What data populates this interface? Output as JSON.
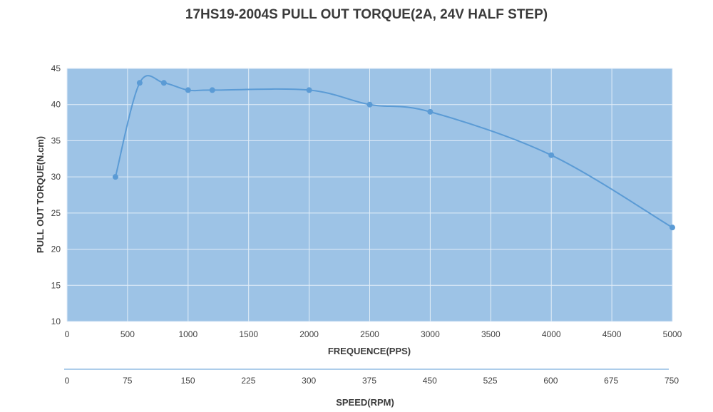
{
  "chart_data": {
    "type": "line",
    "title": "17HS19-2004S PULL OUT TORQUE(2A, 24V HALF STEP)",
    "xlabel": "FREQUENCE(PPS)",
    "ylabel": "PULL OUT TORQUE(N.cm)",
    "xlim": [
      0,
      5000
    ],
    "ylim": [
      10,
      45
    ],
    "x_ticks": [
      0,
      500,
      1000,
      1500,
      2000,
      2500,
      3000,
      3500,
      4000,
      4500,
      5000
    ],
    "y_ticks": [
      10,
      15,
      20,
      25,
      30,
      35,
      40,
      45
    ],
    "grid": true,
    "series": [
      {
        "x": [
          400,
          600,
          800,
          1000,
          1200,
          2000,
          2500,
          3000,
          4000,
          5000
        ],
        "y": [
          30,
          43,
          43,
          42,
          42,
          42,
          40,
          39,
          33,
          23
        ],
        "smooth": true
      }
    ],
    "secondary_axis": {
      "label": "SPEED(RPM)",
      "range": [
        0,
        750
      ],
      "ticks": [
        0,
        75,
        150,
        225,
        300,
        375,
        450,
        525,
        600,
        675,
        750
      ]
    },
    "colors": {
      "plot_background": "#9dc3e6",
      "gridline": "#e3eef8",
      "line": "#5b9bd5",
      "marker": "#5b9bd5"
    }
  }
}
